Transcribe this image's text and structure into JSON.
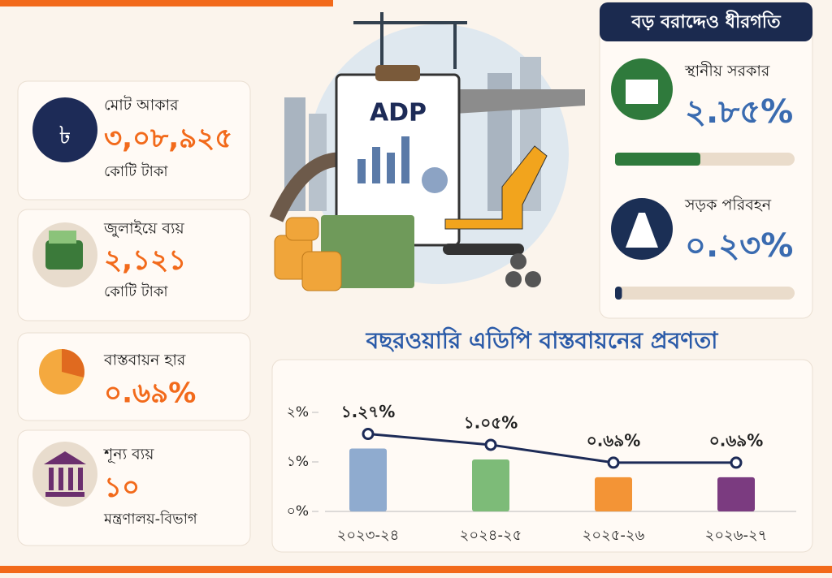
{
  "cards": [
    {
      "icon": "৳",
      "label": "মোট আকার",
      "value": "৩,০৮,৯২৫",
      "unit": "কোটি টাকা"
    },
    {
      "label": "জুলাইয়ে ব্যয়",
      "value": "২,১২১",
      "unit": "কোটি টাকা"
    },
    {
      "label": "বাস্তবায়ন হার",
      "value": "০.৬৯%"
    },
    {
      "label": "শূন্য ব্যয়",
      "value": "১০",
      "unit": "মন্ত্রণালয়-বিভাগ"
    }
  ],
  "illustration": {
    "label": "ADP"
  },
  "panel": {
    "title": "বড় বরাদ্দেও ধীরগতি",
    "xlim": [
      0,
      6
    ],
    "items": [
      {
        "label": "স্থানীয় সরকার",
        "value": 2.85,
        "value_label": "২.৮৫%",
        "color": "#2f7a3c"
      },
      {
        "label": "সড়ক পরিবহন",
        "value": 0.23,
        "value_label": "০.২৩%",
        "color": "#1b2f55"
      }
    ]
  },
  "chart_data": {
    "type": "bar_line",
    "title": "বছরওয়ারি এডিপি বাস্তবায়নের প্রবণতা",
    "categories": [
      "২০২৩-২৪",
      "২০২৪-২৫",
      "২০২৫-২৬",
      "২০২৬-২৭"
    ],
    "values": [
      1.27,
      1.05,
      0.69,
      0.69
    ],
    "value_labels": [
      "১.২৭%",
      "১.০৫%",
      "০.৬৯%",
      "০.৬৯%"
    ],
    "colors": [
      "#8fabcf",
      "#7dbb78",
      "#f39436",
      "#7b3b80"
    ],
    "line_color": "#1d2b57",
    "ylim": [
      0,
      2
    ],
    "yticks": [
      {
        "value": 0,
        "label": "০%"
      },
      {
        "value": 1,
        "label": "১%"
      },
      {
        "value": 2,
        "label": "২%"
      }
    ]
  }
}
